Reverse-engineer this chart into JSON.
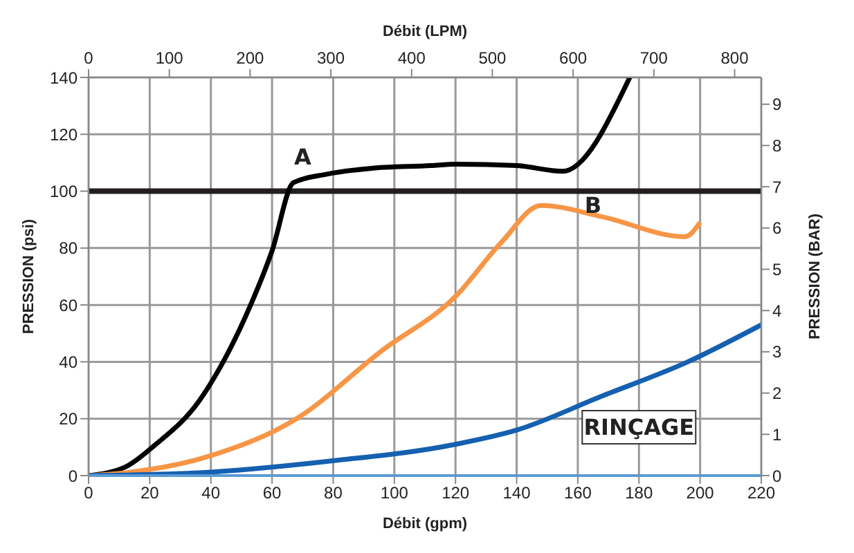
{
  "chart_data": {
    "type": "line",
    "xlabel": "Débit (gpm)",
    "ylabel": "PRESSION (psi)",
    "x2label": "Débit (LPM)",
    "y2label": "PRESSION (BAR)",
    "xlim": [
      0,
      220
    ],
    "xticks": [
      0,
      20,
      40,
      60,
      80,
      100,
      120,
      140,
      160,
      180,
      200,
      220
    ],
    "ylim": [
      0,
      140
    ],
    "yticks": [
      0,
      20,
      40,
      60,
      80,
      100,
      120,
      140
    ],
    "x2lim": [
      0,
      833
    ],
    "x2ticks": [
      0,
      100,
      200,
      300,
      400,
      500,
      600,
      700,
      800
    ],
    "y2lim": [
      0,
      9.65
    ],
    "y2ticks": [
      0,
      1,
      2,
      3,
      4,
      5,
      6,
      7,
      8,
      9
    ],
    "grid": true,
    "series": [
      {
        "color": "#000000",
        "x": [
          0,
          12,
          22,
          36,
          43,
          53,
          60,
          67,
          78,
          92,
          112,
          120,
          140,
          155,
          177
        ],
        "values": [
          0,
          3,
          11,
          26,
          38,
          60,
          79,
          103,
          106,
          108,
          109,
          109.5,
          109,
          107,
          140
        ]
      },
      {
        "color": "#f79646",
        "x": [
          0,
          12,
          40,
          68,
          96,
          120,
          135,
          148,
          168,
          195,
          200
        ],
        "values": [
          0,
          1,
          7,
          20,
          44,
          63,
          82,
          95,
          91,
          84,
          89
        ]
      },
      {
        "color": "#1560b0",
        "x": [
          0,
          36,
          78,
          120,
          140,
          168,
          196,
          220
        ],
        "values": [
          0,
          1,
          5,
          11,
          16,
          28,
          40,
          53
        ]
      }
    ],
    "ref_lines": [
      {
        "axis": "y",
        "value": 100,
        "color": "#231f20"
      }
    ],
    "annotations": [
      "A",
      "B",
      "RINÇAGE"
    ]
  }
}
